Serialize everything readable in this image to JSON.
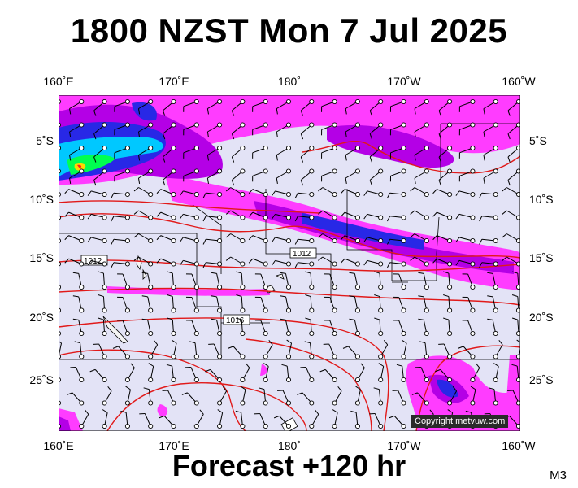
{
  "title": "1800 NZST Mon 7 Jul 2025",
  "footer": "Forecast +120 hr",
  "model_code": "M3",
  "copyright": "Copyright metvuw.com",
  "longitude_labels": [
    "160˚E",
    "170˚E",
    "180˚",
    "170˚W",
    "160˚W"
  ],
  "latitude_labels": [
    "5˚S",
    "10˚S",
    "15˚S",
    "20˚S",
    "25˚S"
  ],
  "isobar_labels": [
    "1012",
    "1012",
    "1016",
    "1012"
  ],
  "colors": {
    "background": "#e3e3f6",
    "rain_light": "#ff3cff",
    "rain_medium": "#b400e6",
    "rain_heavy": "#2828e6",
    "rain_very_heavy": "#00c8ff",
    "rain_extreme": "#00ff50",
    "isobar": "#e11919",
    "border": "#000000"
  }
}
